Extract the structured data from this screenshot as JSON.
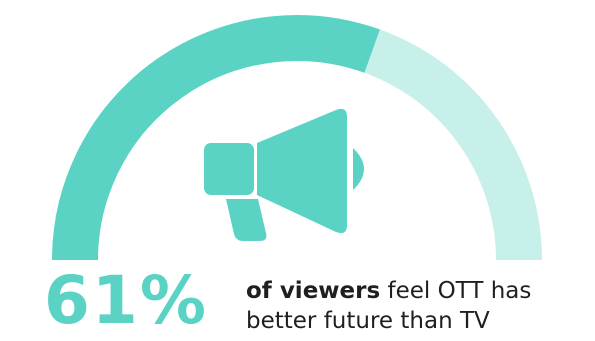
{
  "chart_data": {
    "type": "gauge",
    "value": 61,
    "max": 100,
    "unit": "%",
    "colors": {
      "filled": "#5ad2c4",
      "remainder": "#c7f0ea",
      "icon": "#5ad2c4"
    }
  },
  "stat": {
    "value_label": "61%",
    "caption_bold": "of viewers",
    "caption_line1_rest": " feel OTT has",
    "caption_line2": "better future than TV"
  },
  "icon": "megaphone-icon"
}
